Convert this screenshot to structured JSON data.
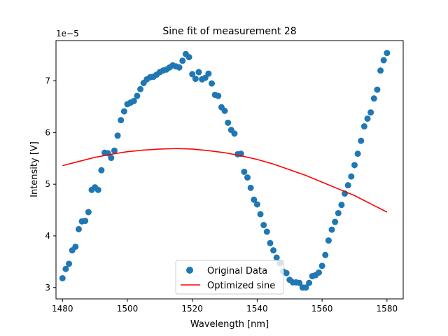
{
  "chart_data": {
    "type": "scatter",
    "title": "Sine fit of measurement 28",
    "xlabel": "Wavelength [nm]",
    "ylabel": "Intensity [V]",
    "offset_text": "1e−5",
    "xlim": [
      1478,
      1585
    ],
    "ylim": [
      2.78,
      7.78
    ],
    "x_ticks": [
      1480,
      1500,
      1520,
      1540,
      1560,
      1580
    ],
    "y_ticks": [
      3,
      4,
      5,
      6,
      7
    ],
    "grid": false,
    "legend_position": "lower center",
    "series": [
      {
        "name": "Original Data",
        "kind": "scatter",
        "color": "#1f77b4",
        "points": [
          [
            1480,
            3.18
          ],
          [
            1481,
            3.36
          ],
          [
            1482,
            3.46
          ],
          [
            1483,
            3.72
          ],
          [
            1484,
            3.79
          ],
          [
            1485,
            4.13
          ],
          [
            1486,
            4.28
          ],
          [
            1487,
            4.29
          ],
          [
            1488,
            4.46
          ],
          [
            1489,
            4.89
          ],
          [
            1490,
            4.94
          ],
          [
            1491,
            4.89
          ],
          [
            1492,
            5.27
          ],
          [
            1493,
            5.61
          ],
          [
            1494,
            5.6
          ],
          [
            1495,
            5.51
          ],
          [
            1496,
            5.65
          ],
          [
            1497,
            5.94
          ],
          [
            1498,
            6.24
          ],
          [
            1499,
            6.41
          ],
          [
            1500,
            6.55
          ],
          [
            1501,
            6.58
          ],
          [
            1502,
            6.61
          ],
          [
            1503,
            6.71
          ],
          [
            1504,
            6.84
          ],
          [
            1505,
            6.96
          ],
          [
            1506,
            7.03
          ],
          [
            1507,
            7.07
          ],
          [
            1508,
            7.08
          ],
          [
            1509,
            7.12
          ],
          [
            1510,
            7.17
          ],
          [
            1511,
            7.2
          ],
          [
            1512,
            7.22
          ],
          [
            1513,
            7.26
          ],
          [
            1514,
            7.3
          ],
          [
            1515,
            7.28
          ],
          [
            1516,
            7.26
          ],
          [
            1517,
            7.39
          ],
          [
            1518,
            7.52
          ],
          [
            1519,
            7.46
          ],
          [
            1520,
            7.13
          ],
          [
            1521,
            7.04
          ],
          [
            1522,
            7.17
          ],
          [
            1523,
            7.03
          ],
          [
            1524,
            7.06
          ],
          [
            1525,
            7.14
          ],
          [
            1526,
            6.95
          ],
          [
            1527,
            6.73
          ],
          [
            1528,
            6.71
          ],
          [
            1529,
            6.49
          ],
          [
            1530,
            6.42
          ],
          [
            1531,
            6.19
          ],
          [
            1532,
            6.05
          ],
          [
            1533,
            5.98
          ],
          [
            1534,
            5.58
          ],
          [
            1535,
            5.59
          ],
          [
            1536,
            5.24
          ],
          [
            1537,
            5.13
          ],
          [
            1538,
            4.93
          ],
          [
            1539,
            4.7
          ],
          [
            1540,
            4.61
          ],
          [
            1541,
            4.42
          ],
          [
            1542,
            4.21
          ],
          [
            1543,
            4.08
          ],
          [
            1544,
            3.86
          ],
          [
            1545,
            3.72
          ],
          [
            1546,
            3.58
          ],
          [
            1547,
            3.47
          ],
          [
            1548,
            3.31
          ],
          [
            1549,
            3.28
          ],
          [
            1550,
            3.15
          ],
          [
            1551,
            3.1
          ],
          [
            1552,
            3.1
          ],
          [
            1553,
            3.09
          ],
          [
            1554,
            3.0
          ],
          [
            1555,
            3.0
          ],
          [
            1556,
            3.09
          ],
          [
            1557,
            3.22
          ],
          [
            1558,
            3.24
          ],
          [
            1559,
            3.29
          ],
          [
            1560,
            3.42
          ],
          [
            1561,
            3.63
          ],
          [
            1562,
            3.91
          ],
          [
            1563,
            4.12
          ],
          [
            1564,
            4.27
          ],
          [
            1565,
            4.44
          ],
          [
            1566,
            4.6
          ],
          [
            1567,
            4.82
          ],
          [
            1568,
            4.98
          ],
          [
            1569,
            5.15
          ],
          [
            1570,
            5.37
          ],
          [
            1571,
            5.59
          ],
          [
            1572,
            5.84
          ],
          [
            1573,
            6.12
          ],
          [
            1574,
            6.27
          ],
          [
            1575,
            6.39
          ],
          [
            1576,
            6.66
          ],
          [
            1577,
            6.83
          ],
          [
            1578,
            7.2
          ],
          [
            1579,
            7.4
          ],
          [
            1580,
            7.54
          ]
        ]
      },
      {
        "name": "Optimized sine",
        "kind": "line",
        "color": "#ff0000",
        "x": [
          1480,
          1485,
          1490,
          1495,
          1500,
          1505,
          1510,
          1515,
          1520,
          1525,
          1530,
          1535,
          1540,
          1545,
          1550,
          1555,
          1560,
          1565,
          1570,
          1575,
          1580
        ],
        "y": [
          5.36,
          5.44,
          5.52,
          5.58,
          5.63,
          5.66,
          5.68,
          5.69,
          5.68,
          5.65,
          5.61,
          5.55,
          5.48,
          5.39,
          5.28,
          5.17,
          5.04,
          4.91,
          4.78,
          4.62,
          4.46
        ]
      }
    ]
  }
}
